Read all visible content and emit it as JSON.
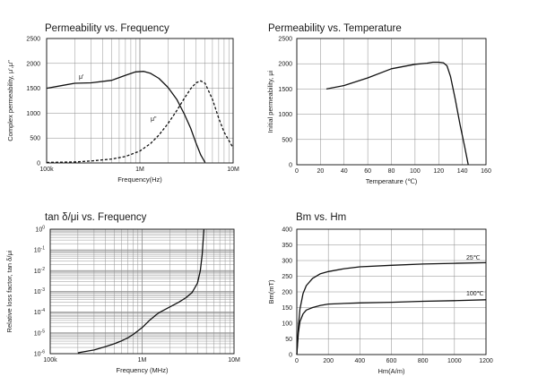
{
  "chart_data": [
    {
      "type": "line",
      "title": "Permeability vs. Frequency",
      "xlabel": "Frequency(Hz)",
      "ylabel": "Complex permeability, μ',μ\"",
      "xscale": "log",
      "xlim": [
        100000,
        10000000
      ],
      "ylim": [
        0,
        2500
      ],
      "xticks": [
        {
          "v": 100000,
          "label": "100k"
        },
        {
          "v": 1000000,
          "label": "1M"
        },
        {
          "v": 10000000,
          "label": "10M"
        }
      ],
      "yticks": [
        0,
        500,
        1000,
        1500,
        2000,
        2500
      ],
      "grid": true,
      "series": [
        {
          "name": "μ'",
          "style": "solid",
          "x": [
            100000,
            150000,
            200000,
            300000,
            500000,
            700000,
            900000,
            1100000,
            1300000,
            1600000,
            2000000,
            2500000,
            3000000,
            3500000,
            4000000,
            4500000,
            5000000
          ],
          "y": [
            1500,
            1560,
            1600,
            1610,
            1660,
            1760,
            1830,
            1840,
            1800,
            1700,
            1520,
            1270,
            980,
            700,
            400,
            160,
            10
          ]
        },
        {
          "name": "μ\"",
          "style": "dashed",
          "x": [
            100000,
            200000,
            300000,
            500000,
            700000,
            1000000,
            1300000,
            1600000,
            2000000,
            2500000,
            3000000,
            3500000,
            4000000,
            4500000,
            5000000,
            6000000,
            7000000,
            8000000,
            10000000
          ],
          "y": [
            10,
            20,
            40,
            80,
            130,
            240,
            390,
            560,
            790,
            1060,
            1300,
            1490,
            1610,
            1650,
            1600,
            1280,
            900,
            620,
            300
          ]
        }
      ]
    },
    {
      "type": "line",
      "title": "Permeability vs. Temperature",
      "xlabel": "Temperature (℃)",
      "ylabel": "Initial permeability, μi",
      "xlim": [
        0,
        160
      ],
      "ylim": [
        0,
        2500
      ],
      "xticks": [
        0,
        20,
        40,
        60,
        80,
        100,
        120,
        140,
        160
      ],
      "yticks": [
        0,
        500,
        1000,
        1500,
        2000,
        2500
      ],
      "grid": true,
      "series": [
        {
          "style": "solid",
          "x": [
            25,
            40,
            60,
            80,
            100,
            110,
            115,
            120,
            124,
            127,
            130,
            134,
            138,
            142,
            145
          ],
          "y": [
            1500,
            1570,
            1720,
            1900,
            1990,
            2010,
            2030,
            2030,
            2020,
            1960,
            1750,
            1300,
            800,
            350,
            0
          ]
        }
      ]
    },
    {
      "type": "line",
      "title": "tan δ/μi vs. Frequency",
      "xlabel": "Frequency (MHz)",
      "ylabel": "Relative loss factor, tan δ/μi",
      "xscale": "log",
      "yscale": "log",
      "xlim": [
        100000,
        10000000
      ],
      "ylim": [
        1e-06,
        1
      ],
      "xticks": [
        {
          "v": 100000,
          "label": "100k"
        },
        {
          "v": 1000000,
          "label": "1M"
        },
        {
          "v": 10000000,
          "label": "10M"
        }
      ],
      "yticks": [
        1,
        0.1,
        0.01,
        0.001,
        0.0001,
        1e-05,
        1e-06
      ],
      "ytick_mantissa": "10",
      "ytick_exponents": [
        "0",
        "-1",
        "-2",
        "-3",
        "-4",
        "-5",
        "-6"
      ],
      "grid": true,
      "series": [
        {
          "style": "solid",
          "x": [
            200000,
            300000,
            400000,
            500000,
            600000,
            700000,
            800000,
            1000000,
            1200000,
            1500000,
            2000000,
            2500000,
            3000000,
            3500000,
            4000000,
            4300000,
            4500000,
            4700000
          ],
          "y": [
            1.1e-06,
            1.5e-06,
            2.2e-06,
            3e-06,
            4.2e-06,
            5.8e-06,
            8.5e-06,
            1.8e-05,
            4e-05,
            9e-05,
            0.00018,
            0.0003,
            0.0005,
            0.0009,
            0.0025,
            0.01,
            0.06,
            1
          ]
        }
      ]
    },
    {
      "type": "line",
      "title": "Bm vs. Hm",
      "xlabel": "Hm(A/m)",
      "ylabel": "Bm(mT)",
      "xlim": [
        0,
        1200
      ],
      "ylim": [
        0,
        400
      ],
      "xticks": [
        0,
        200,
        400,
        600,
        800,
        1000,
        1200
      ],
      "yticks": [
        0,
        50,
        100,
        150,
        200,
        250,
        300,
        350,
        400
      ],
      "grid": true,
      "series": [
        {
          "name": "25℃",
          "style": "solid",
          "x": [
            0,
            10,
            20,
            40,
            60,
            100,
            150,
            200,
            300,
            400,
            600,
            800,
            1000,
            1200
          ],
          "y": [
            0,
            90,
            145,
            195,
            220,
            243,
            258,
            265,
            274,
            280,
            285,
            289,
            291,
            293
          ]
        },
        {
          "name": "100℃",
          "style": "solid",
          "x": [
            0,
            10,
            20,
            40,
            60,
            100,
            150,
            200,
            300,
            400,
            600,
            800,
            1000,
            1200
          ],
          "y": [
            0,
            70,
            105,
            130,
            142,
            150,
            157,
            161,
            163,
            165,
            167,
            170,
            172,
            175
          ]
        }
      ]
    }
  ]
}
